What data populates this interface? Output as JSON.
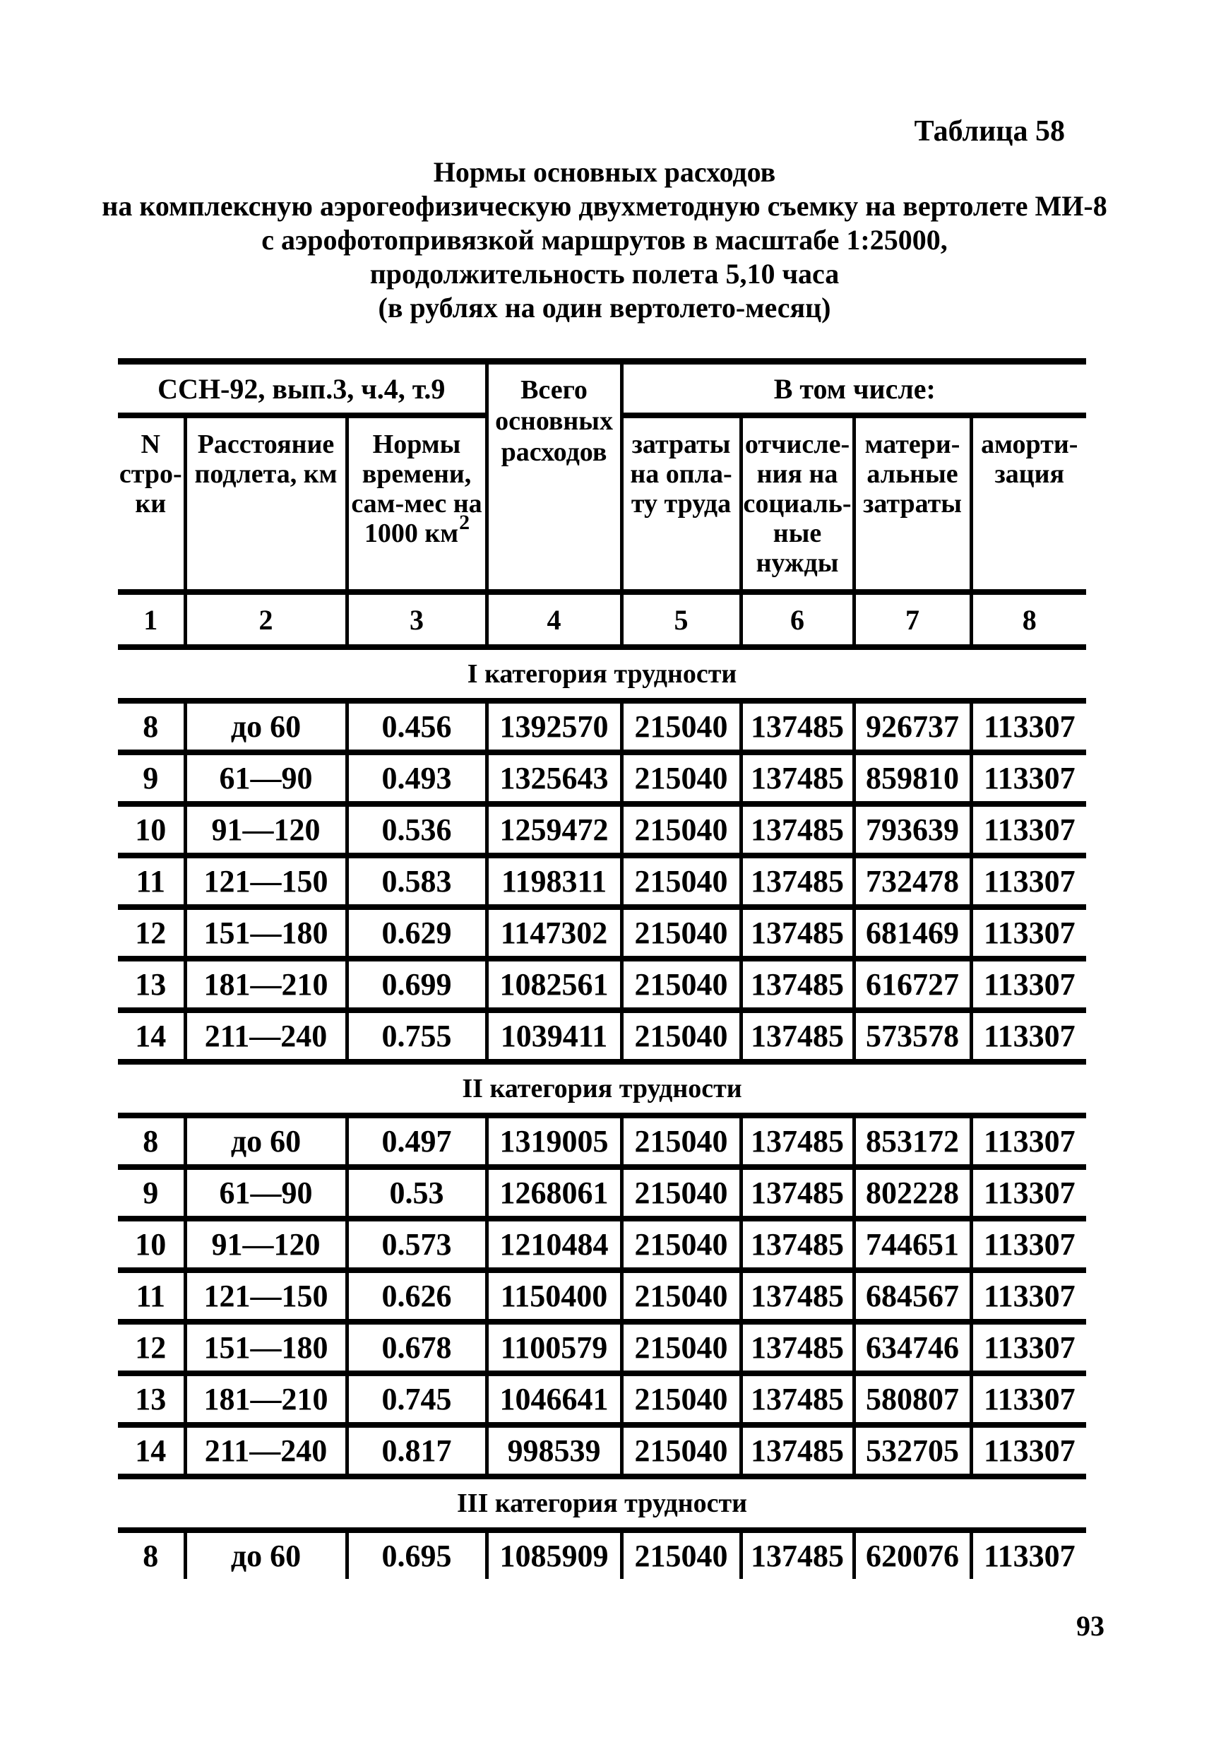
{
  "page": {
    "table_label": "Таблица 58",
    "title_lines": [
      "Нормы основных расходов",
      "на комплексную аэрогеофизическую двухметодную съемку на вертолете МИ-8",
      "с аэрофотопривязкой маршрутов в масштабе 1:25000,",
      "продолжительность полета 5,10 часа",
      "(в рублях на один вертолето-месяц)"
    ],
    "page_number": "93"
  },
  "table": {
    "headers": {
      "group_left": "ССН-92, вып.3, ч.4, т.9",
      "group_right": "В том числе:",
      "col1": "N\nстро-\nки",
      "col2": "Расстояние\nподлета, км",
      "col3_main": "Нормы\nвремени,\nсам-мес на\n1000 км",
      "col3_sup": "2",
      "col4": "Всего\nосновных\nрасходов",
      "col5": "затраты\nна опла-\nту труда",
      "col6": "отчисле-\nния на\nсоциаль-\nные\nнужды",
      "col7": "матери-\nальные\nзатраты",
      "col8": "аморти-\nзация"
    },
    "column_numbers": [
      "1",
      "2",
      "3",
      "4",
      "5",
      "6",
      "7",
      "8"
    ],
    "sections": [
      {
        "title": "I категория трудности",
        "rows": [
          [
            "8",
            "до 60",
            "0.456",
            "1392570",
            "215040",
            "137485",
            "926737",
            "113307"
          ],
          [
            "9",
            "61—90",
            "0.493",
            "1325643",
            "215040",
            "137485",
            "859810",
            "113307"
          ],
          [
            "10",
            "91—120",
            "0.536",
            "1259472",
            "215040",
            "137485",
            "793639",
            "113307"
          ],
          [
            "11",
            "121—150",
            "0.583",
            "1198311",
            "215040",
            "137485",
            "732478",
            "113307"
          ],
          [
            "12",
            "151—180",
            "0.629",
            "1147302",
            "215040",
            "137485",
            "681469",
            "113307"
          ],
          [
            "13",
            "181—210",
            "0.699",
            "1082561",
            "215040",
            "137485",
            "616727",
            "113307"
          ],
          [
            "14",
            "211—240",
            "0.755",
            "1039411",
            "215040",
            "137485",
            "573578",
            "113307"
          ]
        ]
      },
      {
        "title": "II категория трудности",
        "rows": [
          [
            "8",
            "до 60",
            "0.497",
            "1319005",
            "215040",
            "137485",
            "853172",
            "113307"
          ],
          [
            "9",
            "61—90",
            "0.53",
            "1268061",
            "215040",
            "137485",
            "802228",
            "113307"
          ],
          [
            "10",
            "91—120",
            "0.573",
            "1210484",
            "215040",
            "137485",
            "744651",
            "113307"
          ],
          [
            "11",
            "121—150",
            "0.626",
            "1150400",
            "215040",
            "137485",
            "684567",
            "113307"
          ],
          [
            "12",
            "151—180",
            "0.678",
            "1100579",
            "215040",
            "137485",
            "634746",
            "113307"
          ],
          [
            "13",
            "181—210",
            "0.745",
            "1046641",
            "215040",
            "137485",
            "580807",
            "113307"
          ],
          [
            "14",
            "211—240",
            "0.817",
            "998539",
            "215040",
            "137485",
            "532705",
            "113307"
          ]
        ]
      },
      {
        "title": "III категория трудности",
        "rows": [
          [
            "8",
            "до 60",
            "0.695",
            "1085909",
            "215040",
            "137485",
            "620076",
            "113307"
          ]
        ]
      }
    ]
  }
}
